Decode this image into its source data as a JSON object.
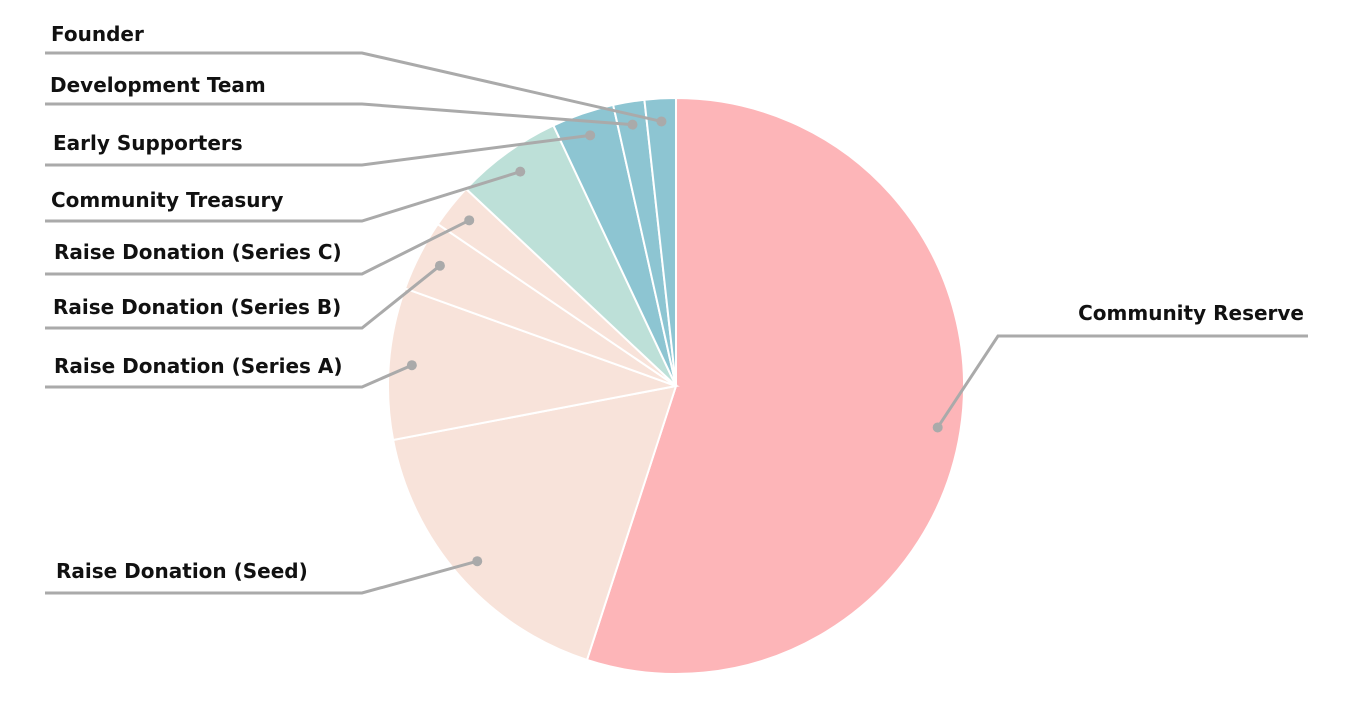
{
  "chart_data": {
    "type": "pie",
    "categories": [
      "Community Reserve",
      "Raise Donation (Seed)",
      "Raise Donation (Series A)",
      "Raise Donation (Series B)",
      "Raise Donation (Series C)",
      "Community Treasury",
      "Early Supporters",
      "Development Team",
      "Founder"
    ],
    "values": [
      55,
      17,
      8.5,
      4,
      2.5,
      6,
      3.5,
      1.75,
      1.75
    ],
    "colors": [
      "#fdb5b8",
      "#f8e3da",
      "#f8e3da",
      "#f8e3da",
      "#f8e3da",
      "#bde0d8",
      "#8dc5d2",
      "#8dc5d2",
      "#8dc5d2"
    ]
  }
}
